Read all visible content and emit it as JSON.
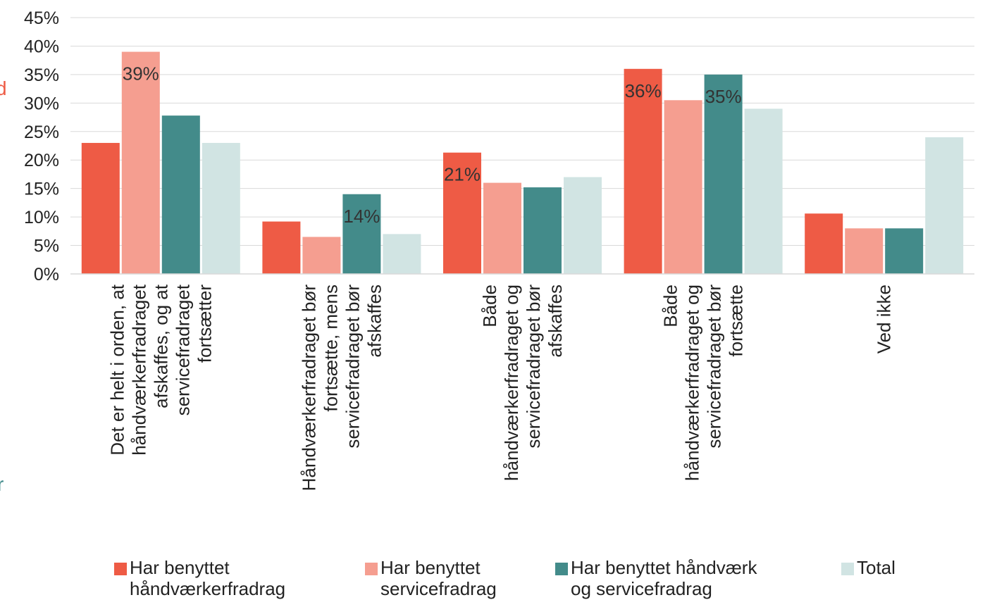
{
  "colors": {
    "axis_text": "#222222",
    "grid": "#d9d9d9",
    "edge_red": "#ee5b45",
    "edge_teal": "#3f8a8a"
  },
  "edge_fragments": {
    "left_top": "d",
    "left_bottom": "r"
  },
  "legend": [
    {
      "label_lines": [
        "Har benyttet",
        "håndværkerfradrag"
      ]
    },
    {
      "label_lines": [
        "Har benyttet",
        "servicefradrag"
      ]
    },
    {
      "label_lines": [
        "Har benyttet håndværk",
        "og servicefradrag"
      ]
    },
    {
      "label_lines": [
        "Total"
      ]
    }
  ],
  "chart_data": {
    "type": "bar",
    "ylim": [
      0,
      45
    ],
    "yticks": [
      "0%",
      "5%",
      "10%",
      "15%",
      "20%",
      "25%",
      "30%",
      "35%",
      "40%",
      "45%"
    ],
    "grid": true,
    "legend_position": "bottom",
    "categories": [
      {
        "label_lines": [
          "Det er helt i orden, at",
          "håndværkerfradraget",
          "afskaffes, og at",
          "servicefradraget",
          "fortsætter"
        ]
      },
      {
        "label_lines": [
          "Håndværkerfradraget bør",
          "fortsætte, mens",
          "servicefradraget bør",
          "afskaffes"
        ]
      },
      {
        "label_lines": [
          "Både",
          "håndværkerfradraget og",
          "servicefradraget bør",
          "afskaffes"
        ]
      },
      {
        "label_lines": [
          "Både",
          "håndværkerfradraget og",
          "servicefradraget bør",
          "fortsætte"
        ]
      },
      {
        "label_lines": [
          "Ved ikke"
        ]
      }
    ],
    "series": [
      {
        "name": "Har benyttet håndværkerfradrag",
        "color": "#ee5b45",
        "values": [
          23,
          9.2,
          21.3,
          36,
          10.6
        ],
        "data_labels": [
          "",
          "",
          "21%",
          "36%",
          ""
        ]
      },
      {
        "name": "Har benyttet servicefradrag",
        "color": "#f59e90",
        "values": [
          39,
          6.5,
          16,
          30.5,
          8
        ],
        "data_labels": [
          "39%",
          "",
          "",
          "",
          ""
        ]
      },
      {
        "name": "Har benyttet håndværk og servicefradrag",
        "color": "#438b8a",
        "values": [
          27.8,
          14,
          15.2,
          35,
          8
        ],
        "data_labels": [
          "",
          "14%",
          "",
          "35%",
          ""
        ]
      },
      {
        "name": "Total",
        "color": "#d1e4e3",
        "values": [
          23,
          7,
          17,
          29,
          24
        ],
        "data_labels": [
          "",
          "",
          "",
          "",
          ""
        ]
      }
    ]
  }
}
